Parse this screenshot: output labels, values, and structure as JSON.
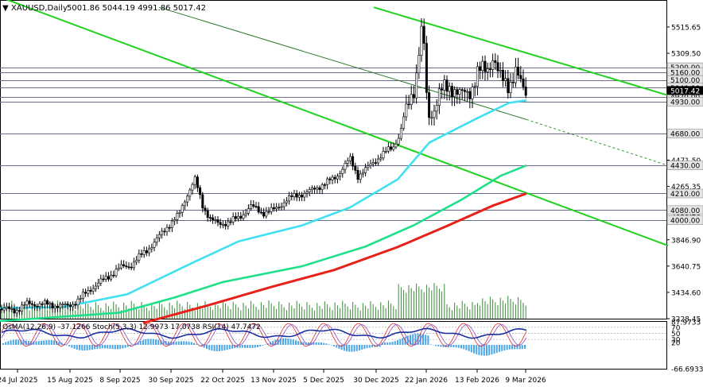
{
  "chart_data": {
    "type": "candlestick",
    "header": {
      "symbol": "XAUUSD,Daily",
      "ohlc": "5001.86 5044.19 4991.86 5017.42"
    },
    "price_axis": {
      "range": [
        3228.68,
        5640
      ],
      "ticks": [
        {
          "v": 5515.65,
          "label": "5515.65"
        },
        {
          "v": 5309.5,
          "label": "5309.50"
        },
        {
          "v": 5103.35,
          "label": "5103.35"
        },
        {
          "v": 4930.65,
          "label": "4930.65"
        },
        {
          "v": 4471.5,
          "label": "4471.50"
        },
        {
          "v": 4265.35,
          "label": "4265.35"
        },
        {
          "v": 4059.2,
          "label": "4059.20"
        },
        {
          "v": 3846.9,
          "label": "3846.90"
        },
        {
          "v": 3640.75,
          "label": "3640.75"
        },
        {
          "v": 3434.6,
          "label": "3434.60"
        },
        {
          "v": 3228.45,
          "label": "3228.45"
        }
      ],
      "levels": [
        {
          "v": 5200,
          "label": "5200.00"
        },
        {
          "v": 5160,
          "label": "5160.00"
        },
        {
          "v": 5100,
          "label": "5100.00"
        },
        {
          "v": 5040,
          "label": "5040.00"
        },
        {
          "v": 4970,
          "label": "4970.00"
        },
        {
          "v": 4930,
          "label": "4930.00"
        },
        {
          "v": 4680,
          "label": "4680.00"
        },
        {
          "v": 4430,
          "label": "4430.00"
        },
        {
          "v": 4210,
          "label": "4210.00"
        },
        {
          "v": 4080,
          "label": "4080.00"
        },
        {
          "v": 4000,
          "label": "4000.00"
        }
      ],
      "current": {
        "v": 5017.42,
        "label": "5017.42"
      }
    },
    "x_labels": [
      "24 Jul 2025",
      "15 Aug 2025",
      "8 Sep 2025",
      "30 Sep 2025",
      "22 Oct 2025",
      "13 Nov 2025",
      "5 Dec 2025",
      "30 Dec 2025",
      "22 Jan 2026",
      "13 Feb 2026",
      "9 Mar 2026"
    ],
    "price_path": [
      {
        "x": 0,
        "y": 3305
      },
      {
        "x": 20,
        "y": 3295
      },
      {
        "x": 35,
        "y": 3345
      },
      {
        "x": 60,
        "y": 3340
      },
      {
        "x": 85,
        "y": 3325
      },
      {
        "x": 100,
        "y": 3380
      },
      {
        "x": 115,
        "y": 3470
      },
      {
        "x": 130,
        "y": 3530
      },
      {
        "x": 150,
        "y": 3625
      },
      {
        "x": 165,
        "y": 3650
      },
      {
        "x": 180,
        "y": 3740
      },
      {
        "x": 195,
        "y": 3830
      },
      {
        "x": 210,
        "y": 3950
      },
      {
        "x": 225,
        "y": 4040
      },
      {
        "x": 235,
        "y": 4200
      },
      {
        "x": 245,
        "y": 4320
      },
      {
        "x": 255,
        "y": 4110
      },
      {
        "x": 265,
        "y": 4010
      },
      {
        "x": 275,
        "y": 3965
      },
      {
        "x": 290,
        "y": 3995
      },
      {
        "x": 300,
        "y": 4015
      },
      {
        "x": 315,
        "y": 4110
      },
      {
        "x": 330,
        "y": 4060
      },
      {
        "x": 345,
        "y": 4080
      },
      {
        "x": 360,
        "y": 4160
      },
      {
        "x": 375,
        "y": 4200
      },
      {
        "x": 390,
        "y": 4225
      },
      {
        "x": 405,
        "y": 4280
      },
      {
        "x": 420,
        "y": 4325
      },
      {
        "x": 440,
        "y": 4480
      },
      {
        "x": 450,
        "y": 4350
      },
      {
        "x": 460,
        "y": 4395
      },
      {
        "x": 470,
        "y": 4460
      },
      {
        "x": 485,
        "y": 4535
      },
      {
        "x": 495,
        "y": 4580
      },
      {
        "x": 505,
        "y": 4720
      },
      {
        "x": 515,
        "y": 4930
      },
      {
        "x": 522,
        "y": 5080
      },
      {
        "x": 527,
        "y": 5350
      },
      {
        "x": 532,
        "y": 5530
      },
      {
        "x": 536,
        "y": 4960
      },
      {
        "x": 540,
        "y": 4800
      },
      {
        "x": 546,
        "y": 4900
      },
      {
        "x": 552,
        "y": 4990
      },
      {
        "x": 560,
        "y": 5020
      },
      {
        "x": 570,
        "y": 5060
      },
      {
        "x": 580,
        "y": 4960
      },
      {
        "x": 590,
        "y": 5010
      },
      {
        "x": 600,
        "y": 5150
      },
      {
        "x": 612,
        "y": 5180
      },
      {
        "x": 620,
        "y": 5300
      },
      {
        "x": 628,
        "y": 5100
      },
      {
        "x": 640,
        "y": 5080
      },
      {
        "x": 648,
        "y": 5160
      },
      {
        "x": 655,
        "y": 5050
      },
      {
        "x": 662,
        "y": 5017
      }
    ],
    "moving_averages": [
      {
        "color": "#40e0f0",
        "width": 2.6,
        "points": [
          {
            "x": 0,
            "y": 3310
          },
          {
            "x": 80,
            "y": 3320
          },
          {
            "x": 160,
            "y": 3420
          },
          {
            "x": 240,
            "y": 3660
          },
          {
            "x": 300,
            "y": 3835
          },
          {
            "x": 380,
            "y": 3960
          },
          {
            "x": 440,
            "y": 4100
          },
          {
            "x": 500,
            "y": 4320
          },
          {
            "x": 540,
            "y": 4610
          },
          {
            "x": 600,
            "y": 4800
          },
          {
            "x": 640,
            "y": 4920
          },
          {
            "x": 662,
            "y": 4940
          }
        ]
      },
      {
        "color": "#1ee08a",
        "width": 2.6,
        "points": [
          {
            "x": 0,
            "y": 3210
          },
          {
            "x": 150,
            "y": 3275
          },
          {
            "x": 220,
            "y": 3395
          },
          {
            "x": 280,
            "y": 3515
          },
          {
            "x": 380,
            "y": 3640
          },
          {
            "x": 460,
            "y": 3795
          },
          {
            "x": 520,
            "y": 3960
          },
          {
            "x": 580,
            "y": 4160
          },
          {
            "x": 630,
            "y": 4350
          },
          {
            "x": 662,
            "y": 4430
          }
        ]
      },
      {
        "color": "#e8201a",
        "width": 3,
        "points": [
          {
            "x": 180,
            "y": 3195
          },
          {
            "x": 260,
            "y": 3330
          },
          {
            "x": 340,
            "y": 3475
          },
          {
            "x": 420,
            "y": 3610
          },
          {
            "x": 500,
            "y": 3790
          },
          {
            "x": 560,
            "y": 3950
          },
          {
            "x": 620,
            "y": 4115
          },
          {
            "x": 662,
            "y": 4210
          }
        ]
      }
    ],
    "trend_lines": [
      {
        "color": "#1fd21f",
        "width": 2,
        "x1": 0,
        "y1": 5750,
        "x2": 840,
        "y2": 3801
      },
      {
        "color": "#1fd21f",
        "width": 2,
        "x1": 470,
        "y1": 5670,
        "x2": 840,
        "y2": 4980
      },
      {
        "color": "#2e7a2e",
        "width": 1,
        "x1": 200,
        "y1": 5670,
        "x2": 662,
        "y2": 4790
      },
      {
        "color": "#2e9a2e",
        "width": 1,
        "dash": "3,3",
        "x1": 662,
        "y1": 4790,
        "x2": 840,
        "y2": 4430
      }
    ],
    "volume_max": 1,
    "oscillator": {
      "label": "OsMA(12,26,9) -37.1266  Stoch(5,3,3) 12.9973 17.0738  RSI(14) 47.7472",
      "ticks": [
        {
          "v": 87.9733,
          "label": "87.9733"
        },
        {
          "v": 70,
          "label": "70"
        },
        {
          "v": 50,
          "label": "50"
        },
        {
          "v": 30,
          "label": "30"
        },
        {
          "v": 20,
          "label": "20"
        },
        {
          "v": -66.6933,
          "label": "-66.6933"
        }
      ]
    }
  }
}
